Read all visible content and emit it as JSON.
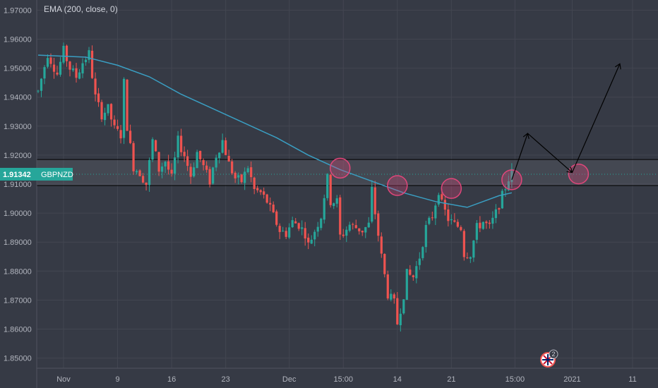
{
  "indicator": {
    "legend": "EMA (200, close, 0)"
  },
  "symbol": {
    "name": "GBPNZD",
    "price_label": "1.91342",
    "badge_color": "#26a69a"
  },
  "colors": {
    "background": "#363a45",
    "grid": "#434651",
    "up": "#26a69a",
    "down": "#ef5350",
    "ema": "#3a9ec2",
    "zone": "#000000",
    "circle": "#e0467a",
    "arrow": "#000000"
  },
  "event_badge": {
    "count": "2",
    "icon": "flag-uk-icon"
  },
  "chart_data": {
    "type": "candlestick",
    "title": "",
    "y_ticks": [
      "1.97000",
      "1.96000",
      "1.95000",
      "1.94000",
      "1.93000",
      "1.92000",
      "1.91000",
      "1.90000",
      "1.89000",
      "1.88000",
      "1.87000",
      "1.86000",
      "1.85000"
    ],
    "x_ticks": [
      {
        "label": "Nov",
        "i": 8
      },
      {
        "label": "9",
        "i": 25
      },
      {
        "label": "16",
        "i": 42
      },
      {
        "label": "23",
        "i": 59
      },
      {
        "label": "Dec",
        "i": 79
      },
      {
        "label": "15:00",
        "i": 96
      },
      {
        "label": "14",
        "i": 113
      },
      {
        "label": "21",
        "i": 130
      },
      {
        "label": "15:00",
        "i": 150
      },
      {
        "label": "2021",
        "i": 168
      },
      {
        "label": "11",
        "i": 187
      }
    ],
    "ylim": [
      1.8465,
      1.9735
    ],
    "xlim": [
      0,
      195
    ],
    "current_price": 1.91342,
    "zone": [
      1.9095,
      1.9185
    ],
    "price_path": [
      [
        0,
        1.942
      ],
      [
        3,
        1.955
      ],
      [
        6,
        1.948
      ],
      [
        8,
        1.956
      ],
      [
        10,
        1.95
      ],
      [
        12,
        1.947
      ],
      [
        14,
        1.952
      ],
      [
        16,
        1.955
      ],
      [
        18,
        1.94
      ],
      [
        20,
        1.934
      ],
      [
        22,
        1.936
      ],
      [
        24,
        1.929
      ],
      [
        26,
        1.927
      ],
      [
        27,
        1.945
      ],
      [
        28,
        1.93
      ],
      [
        30,
        1.916
      ],
      [
        32,
        1.914
      ],
      [
        34,
        1.91
      ],
      [
        36,
        1.925
      ],
      [
        38,
        1.915
      ],
      [
        40,
        1.918
      ],
      [
        42,
        1.912
      ],
      [
        44,
        1.925
      ],
      [
        46,
        1.92
      ],
      [
        48,
        1.913
      ],
      [
        50,
        1.921
      ],
      [
        52,
        1.916
      ],
      [
        54,
        1.911
      ],
      [
        56,
        1.92
      ],
      [
        58,
        1.925
      ],
      [
        60,
        1.917
      ],
      [
        62,
        1.912
      ],
      [
        64,
        1.911
      ],
      [
        66,
        1.916
      ],
      [
        68,
        1.908
      ],
      [
        70,
        1.907
      ],
      [
        72,
        1.904
      ],
      [
        74,
        1.899
      ],
      [
        76,
        1.894
      ],
      [
        78,
        1.893
      ],
      [
        80,
        1.897
      ],
      [
        82,
        1.896
      ],
      [
        84,
        1.893
      ],
      [
        85,
        1.889
      ],
      [
        87,
        1.894
      ],
      [
        89,
        1.899
      ],
      [
        90,
        1.906
      ],
      [
        91,
        1.912
      ],
      [
        92,
        1.904
      ],
      [
        94,
        1.904
      ],
      [
        95,
        1.892
      ],
      [
        96,
        1.893
      ],
      [
        98,
        1.896
      ],
      [
        100,
        1.895
      ],
      [
        102,
        1.894
      ],
      [
        104,
        1.896
      ],
      [
        105,
        1.908
      ],
      [
        106,
        1.9
      ],
      [
        108,
        1.885
      ],
      [
        110,
        1.872
      ],
      [
        112,
        1.869
      ],
      [
        113,
        1.862
      ],
      [
        115,
        1.872
      ],
      [
        116,
        1.879
      ],
      [
        118,
        1.878
      ],
      [
        120,
        1.885
      ],
      [
        122,
        1.895
      ],
      [
        124,
        1.899
      ],
      [
        126,
        1.908
      ],
      [
        127,
        1.903
      ],
      [
        129,
        1.898
      ],
      [
        131,
        1.896
      ],
      [
        133,
        1.895
      ],
      [
        134,
        1.886
      ],
      [
        136,
        1.886
      ],
      [
        138,
        1.895
      ],
      [
        140,
        1.897
      ],
      [
        142,
        1.895
      ],
      [
        144,
        1.9
      ],
      [
        146,
        1.906
      ],
      [
        148,
        1.912
      ],
      [
        149,
        1.914
      ]
    ],
    "ema_series": {
      "name": "EMA (200, close, 0)",
      "points": [
        [
          0,
          1.9545
        ],
        [
          15,
          1.9538
        ],
        [
          25,
          1.951
        ],
        [
          35,
          1.947
        ],
        [
          45,
          1.941
        ],
        [
          55,
          1.936
        ],
        [
          65,
          1.931
        ],
        [
          75,
          1.926
        ],
        [
          85,
          1.92
        ],
        [
          95,
          1.915
        ],
        [
          105,
          1.911
        ],
        [
          115,
          1.907
        ],
        [
          125,
          1.904
        ],
        [
          135,
          1.902
        ],
        [
          145,
          1.906
        ],
        [
          149,
          1.907
        ]
      ]
    },
    "highlighted_touches": [
      [
        95,
        1.9155
      ],
      [
        113,
        1.9095
      ],
      [
        130,
        1.9085
      ],
      [
        149,
        1.9115
      ],
      [
        170,
        1.9135
      ]
    ],
    "projection_path": [
      [
        149,
        1.9115
      ],
      [
        154,
        1.9275
      ],
      [
        168,
        1.914
      ],
      [
        183,
        1.9515
      ]
    ]
  }
}
